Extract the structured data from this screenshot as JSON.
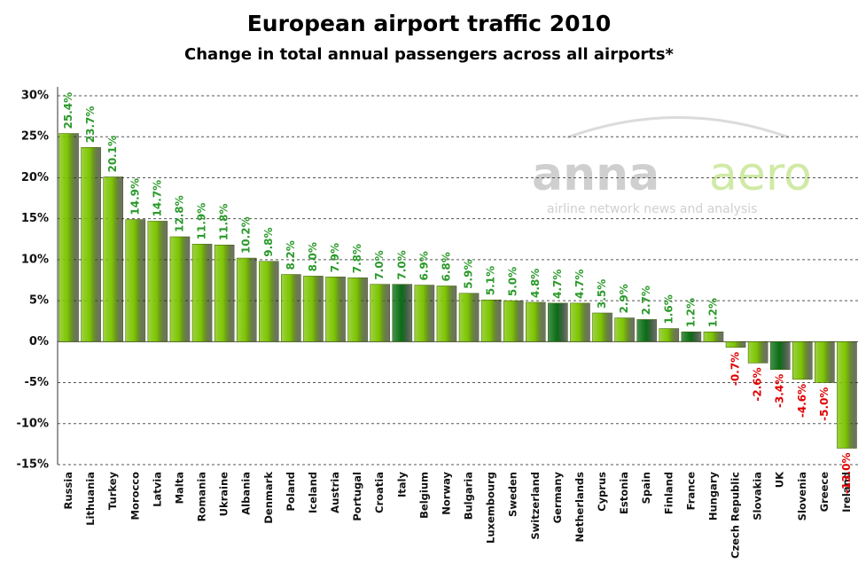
{
  "chart_data": {
    "type": "bar",
    "title": "European airport traffic 2010",
    "subtitle": "Change in total annual passengers across all airports*",
    "watermark": {
      "brand": "anna",
      "brand2": "aero",
      "tagline": "airline network news and analysis"
    },
    "categories": [
      "Russia",
      "Lithuania",
      "Turkey",
      "Morocco",
      "Latvia",
      "Malta",
      "Romania",
      "Ukraine",
      "Albania",
      "Denmark",
      "Poland",
      "Iceland",
      "Austria",
      "Portugal",
      "Croatia",
      "Italy",
      "Belgium",
      "Norway",
      "Bulgaria",
      "Luxembourg",
      "Sweden",
      "Switzerland",
      "Germany",
      "Netherlands",
      "Cyprus",
      "Estonia",
      "Spain",
      "Finland",
      "France",
      "Hungary",
      "Czech Republic",
      "Slovakia",
      "UK",
      "Slovenia",
      "Greece",
      "Ireland"
    ],
    "values": [
      25.4,
      23.7,
      20.1,
      14.9,
      14.7,
      12.8,
      11.9,
      11.8,
      10.2,
      9.8,
      8.2,
      8.0,
      7.9,
      7.8,
      7.0,
      7.0,
      6.9,
      6.8,
      5.9,
      5.1,
      5.0,
      4.8,
      4.7,
      4.7,
      3.5,
      2.9,
      2.7,
      1.6,
      1.2,
      1.2,
      -0.7,
      -2.6,
      -3.4,
      -4.6,
      -5.0,
      -13.0
    ],
    "value_labels": [
      "25.4%",
      "23.7%",
      "20.1%",
      "14.9%",
      "14.7%",
      "12.8%",
      "11.9%",
      "11.8%",
      "10.2%",
      "9.8%",
      "8.2%",
      "8.0%",
      "7.9%",
      "7.8%",
      "7.0%",
      "7.0%",
      "6.9%",
      "6.8%",
      "5.9%",
      "5.1%",
      "5.0%",
      "4.8%",
      "4.7%",
      "4.7%",
      "3.5%",
      "2.9%",
      "2.7%",
      "1.6%",
      "1.2%",
      "1.2%",
      "-0.7%",
      "-2.6%",
      "-3.4%",
      "-4.6%",
      "-5.0%",
      "-13.0%"
    ],
    "colors": [
      "#7cc400",
      "#7cc400",
      "#7cc400",
      "#7cc400",
      "#7cc400",
      "#7cc400",
      "#7cc400",
      "#7cc400",
      "#7cc400",
      "#7cc400",
      "#7cc400",
      "#7cc400",
      "#7cc400",
      "#7cc400",
      "#7cc400",
      "#0a6e14",
      "#7cc400",
      "#7cc400",
      "#7cc400",
      "#7cc400",
      "#7cc400",
      "#7cc400",
      "#0a6e14",
      "#7cc400",
      "#7cc400",
      "#7cc400",
      "#0a6e14",
      "#7cc400",
      "#0a6e14",
      "#7cc400",
      "#7cc400",
      "#7cc400",
      "#0a6e14",
      "#7cc400",
      "#7cc400",
      "#7cc400"
    ],
    "label_colors": {
      "positive": "#2a9a2a",
      "negative": "#e00000"
    },
    "ylim": [
      -15,
      30
    ],
    "yticks": [
      {
        "value": -15,
        "label": "-15%"
      },
      {
        "value": -10,
        "label": "-10%"
      },
      {
        "value": -5,
        "label": "-5%"
      },
      {
        "value": 0,
        "label": "0%"
      },
      {
        "value": 5,
        "label": "5%"
      },
      {
        "value": 10,
        "label": "10%"
      },
      {
        "value": 15,
        "label": "15%"
      },
      {
        "value": 20,
        "label": "20%"
      },
      {
        "value": 25,
        "label": "25%"
      },
      {
        "value": 30,
        "label": "30%"
      }
    ],
    "grid": true
  }
}
